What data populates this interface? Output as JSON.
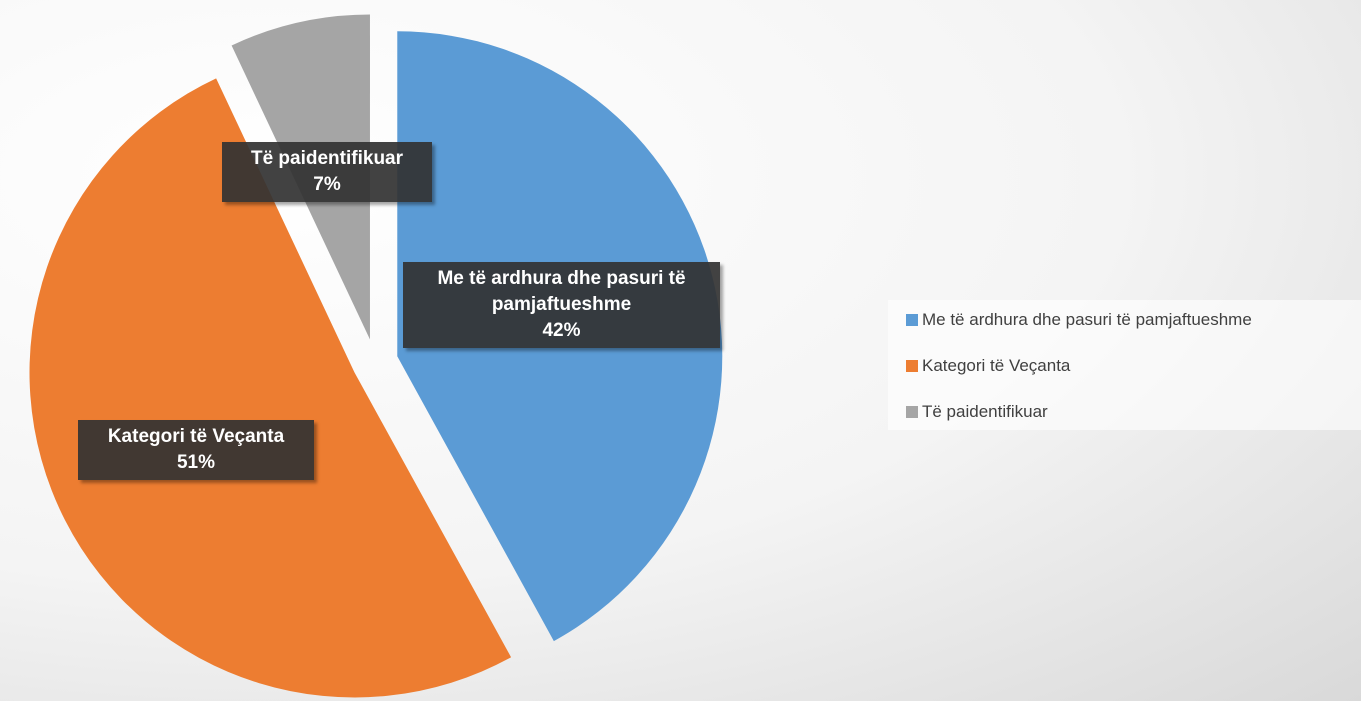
{
  "chart_data": {
    "type": "pie",
    "categories": [
      "Me të ardhura dhe pasuri të pamjaftueshme",
      "Kategori të Veçanta",
      "Të paidentifikuar"
    ],
    "values": [
      42,
      51,
      7
    ],
    "value_labels": [
      "42%",
      "51%",
      "7%"
    ],
    "colors": [
      "#5b9bd5",
      "#ed7d31",
      "#a5a5a5"
    ],
    "legend": "right"
  }
}
